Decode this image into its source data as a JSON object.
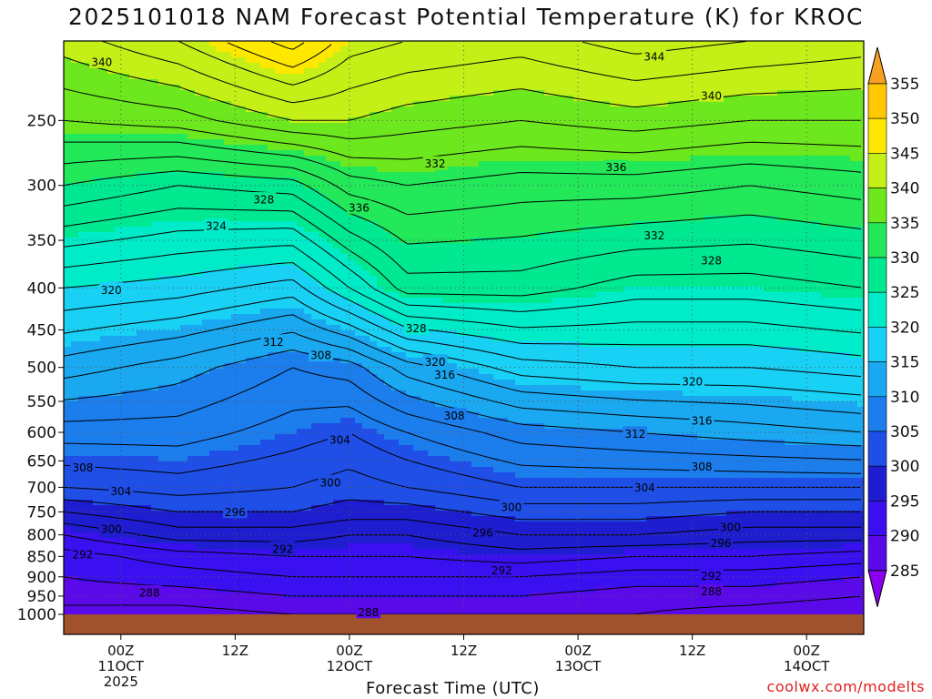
{
  "title": "2025101018 NAM Forecast Potential Temperature (K) for KROC",
  "credit": "coolwx.com/modelts",
  "chart_data": {
    "type": "heatmap",
    "title": "2025101018 NAM Forecast Potential Temperature (K) for KROC",
    "xlabel": "Forecast Time (UTC)",
    "ylabel": "",
    "y_scale": "log",
    "y_axis": "pressure (hPa), decreasing upward",
    "ylim": [
      1000,
      200
    ],
    "xlim_hours": [
      0,
      84
    ],
    "y_ticks": [
      250,
      300,
      350,
      400,
      450,
      500,
      550,
      600,
      650,
      700,
      750,
      800,
      850,
      900,
      950,
      1000
    ],
    "x_ticks": [
      {
        "hour": 6,
        "lines": [
          "00Z",
          "11OCT",
          "2025"
        ]
      },
      {
        "hour": 18,
        "lines": [
          "12Z"
        ]
      },
      {
        "hour": 30,
        "lines": [
          "00Z",
          "12OCT"
        ]
      },
      {
        "hour": 42,
        "lines": [
          "12Z"
        ]
      },
      {
        "hour": 54,
        "lines": [
          "00Z",
          "13OCT"
        ]
      },
      {
        "hour": 66,
        "lines": [
          "12Z"
        ]
      },
      {
        "hour": 78,
        "lines": [
          "00Z",
          "14OCT"
        ]
      }
    ],
    "grid": true,
    "colorbar": {
      "levels": [
        285,
        290,
        295,
        300,
        305,
        310,
        315,
        320,
        325,
        330,
        335,
        340,
        345,
        350,
        355
      ],
      "colors": [
        "#8800ee",
        "#5a0ae8",
        "#3a10f0",
        "#1e1ed0",
        "#1f4fe6",
        "#1c7ded",
        "#1aa8f0",
        "#19d0f5",
        "#00ecc8",
        "#00e890",
        "#22e85a",
        "#6ee81e",
        "#c4f018",
        "#ffe800",
        "#ffc800",
        "#f8a020"
      ]
    },
    "profiles": [
      {
        "hour": 0,
        "theta": [
          [
            1000,
            287
          ],
          [
            950,
            289
          ],
          [
            900,
            290
          ],
          [
            850,
            291
          ],
          [
            800,
            294
          ],
          [
            750,
            298
          ],
          [
            700,
            302
          ],
          [
            600,
            307
          ],
          [
            500,
            313
          ],
          [
            400,
            320
          ],
          [
            300,
            330
          ],
          [
            250,
            336
          ],
          [
            200,
            341
          ]
        ]
      },
      {
        "hour": 12,
        "theta": [
          [
            1000,
            287
          ],
          [
            950,
            289
          ],
          [
            900,
            291
          ],
          [
            850,
            293
          ],
          [
            800,
            297
          ],
          [
            750,
            300
          ],
          [
            700,
            303
          ],
          [
            600,
            307
          ],
          [
            500,
            311
          ],
          [
            400,
            319
          ],
          [
            300,
            328
          ],
          [
            250,
            337
          ],
          [
            200,
            344
          ]
        ]
      },
      {
        "hour": 24,
        "theta": [
          [
            1000,
            288
          ],
          [
            950,
            290
          ],
          [
            900,
            292
          ],
          [
            850,
            294
          ],
          [
            800,
            297
          ],
          [
            750,
            300
          ],
          [
            700,
            302
          ],
          [
            600,
            305
          ],
          [
            500,
            308
          ],
          [
            400,
            317
          ],
          [
            300,
            329
          ],
          [
            250,
            340
          ],
          [
            200,
            349
          ]
        ]
      },
      {
        "hour": 30,
        "theta": [
          [
            1000,
            288
          ],
          [
            950,
            290
          ],
          [
            900,
            292
          ],
          [
            850,
            294
          ],
          [
            800,
            296
          ],
          [
            750,
            299
          ],
          [
            700,
            301
          ],
          [
            600,
            304
          ],
          [
            500,
            309
          ],
          [
            400,
            322
          ],
          [
            300,
            333
          ],
          [
            250,
            340
          ],
          [
            200,
            345
          ]
        ]
      },
      {
        "hour": 36,
        "theta": [
          [
            1000,
            288
          ],
          [
            950,
            290
          ],
          [
            900,
            292
          ],
          [
            850,
            294
          ],
          [
            800,
            296
          ],
          [
            750,
            299
          ],
          [
            700,
            302
          ],
          [
            600,
            306
          ],
          [
            500,
            313
          ],
          [
            400,
            327
          ],
          [
            300,
            334
          ],
          [
            250,
            339
          ],
          [
            200,
            344
          ]
        ]
      },
      {
        "hour": 48,
        "theta": [
          [
            1000,
            288
          ],
          [
            950,
            290
          ],
          [
            900,
            292
          ],
          [
            850,
            295
          ],
          [
            800,
            298
          ],
          [
            750,
            301
          ],
          [
            700,
            304
          ],
          [
            600,
            309
          ],
          [
            500,
            317
          ],
          [
            400,
            327
          ],
          [
            300,
            333
          ],
          [
            250,
            338
          ],
          [
            200,
            343
          ]
        ]
      },
      {
        "hour": 60,
        "theta": [
          [
            1000,
            288
          ],
          [
            950,
            289
          ],
          [
            900,
            291
          ],
          [
            850,
            294
          ],
          [
            800,
            298
          ],
          [
            750,
            301
          ],
          [
            700,
            304
          ],
          [
            600,
            310
          ],
          [
            500,
            318
          ],
          [
            400,
            325
          ],
          [
            300,
            333
          ],
          [
            250,
            339
          ],
          [
            200,
            345
          ]
        ]
      },
      {
        "hour": 72,
        "theta": [
          [
            1000,
            287
          ],
          [
            950,
            289
          ],
          [
            900,
            291
          ],
          [
            850,
            294
          ],
          [
            800,
            297
          ],
          [
            750,
            300
          ],
          [
            700,
            304
          ],
          [
            600,
            311
          ],
          [
            500,
            318
          ],
          [
            400,
            325
          ],
          [
            300,
            332
          ],
          [
            250,
            338
          ],
          [
            200,
            344
          ]
        ]
      },
      {
        "hour": 84,
        "theta": [
          [
            1000,
            286
          ],
          [
            950,
            288
          ],
          [
            900,
            290
          ],
          [
            850,
            293
          ],
          [
            800,
            297
          ],
          [
            750,
            300
          ],
          [
            700,
            304
          ],
          [
            600,
            312
          ],
          [
            500,
            319
          ],
          [
            400,
            326
          ],
          [
            300,
            333
          ],
          [
            250,
            338
          ],
          [
            200,
            343
          ]
        ]
      }
    ],
    "contour_interval": 2,
    "contour_labels": [
      {
        "value": "340",
        "hour": 4,
        "p": 212
      },
      {
        "value": "344",
        "hour": 62,
        "p": 209
      },
      {
        "value": "340",
        "hour": 68,
        "p": 233
      },
      {
        "value": "332",
        "hour": 39,
        "p": 282
      },
      {
        "value": "336",
        "hour": 58,
        "p": 285
      },
      {
        "value": "328",
        "hour": 21,
        "p": 312
      },
      {
        "value": "336",
        "hour": 31,
        "p": 319
      },
      {
        "value": "324",
        "hour": 16,
        "p": 336
      },
      {
        "value": "332",
        "hour": 62,
        "p": 345
      },
      {
        "value": "328",
        "hour": 68,
        "p": 370
      },
      {
        "value": "320",
        "hour": 5,
        "p": 402
      },
      {
        "value": "312",
        "hour": 22,
        "p": 465
      },
      {
        "value": "308",
        "hour": 27,
        "p": 483
      },
      {
        "value": "328",
        "hour": 37,
        "p": 448
      },
      {
        "value": "320",
        "hour": 39,
        "p": 492
      },
      {
        "value": "316",
        "hour": 40,
        "p": 510
      },
      {
        "value": "320",
        "hour": 66,
        "p": 520
      },
      {
        "value": "308",
        "hour": 41,
        "p": 572
      },
      {
        "value": "316",
        "hour": 67,
        "p": 580
      },
      {
        "value": "312",
        "hour": 60,
        "p": 602
      },
      {
        "value": "304",
        "hour": 29,
        "p": 612
      },
      {
        "value": "308",
        "hour": 2,
        "p": 662
      },
      {
        "value": "308",
        "hour": 67,
        "p": 660
      },
      {
        "value": "304",
        "hour": 6,
        "p": 707
      },
      {
        "value": "304",
        "hour": 61,
        "p": 700
      },
      {
        "value": "300",
        "hour": 28,
        "p": 690
      },
      {
        "value": "296",
        "hour": 18,
        "p": 750
      },
      {
        "value": "300",
        "hour": 47,
        "p": 740
      },
      {
        "value": "300",
        "hour": 5,
        "p": 787
      },
      {
        "value": "296",
        "hour": 44,
        "p": 795
      },
      {
        "value": "300",
        "hour": 70,
        "p": 783
      },
      {
        "value": "292",
        "hour": 23,
        "p": 832
      },
      {
        "value": "296",
        "hour": 69,
        "p": 818
      },
      {
        "value": "292",
        "hour": 2,
        "p": 845
      },
      {
        "value": "292",
        "hour": 46,
        "p": 884
      },
      {
        "value": "292",
        "hour": 68,
        "p": 897
      },
      {
        "value": "288",
        "hour": 9,
        "p": 940
      },
      {
        "value": "288",
        "hour": 68,
        "p": 937
      },
      {
        "value": "288",
        "hour": 32,
        "p": 993
      }
    ]
  }
}
